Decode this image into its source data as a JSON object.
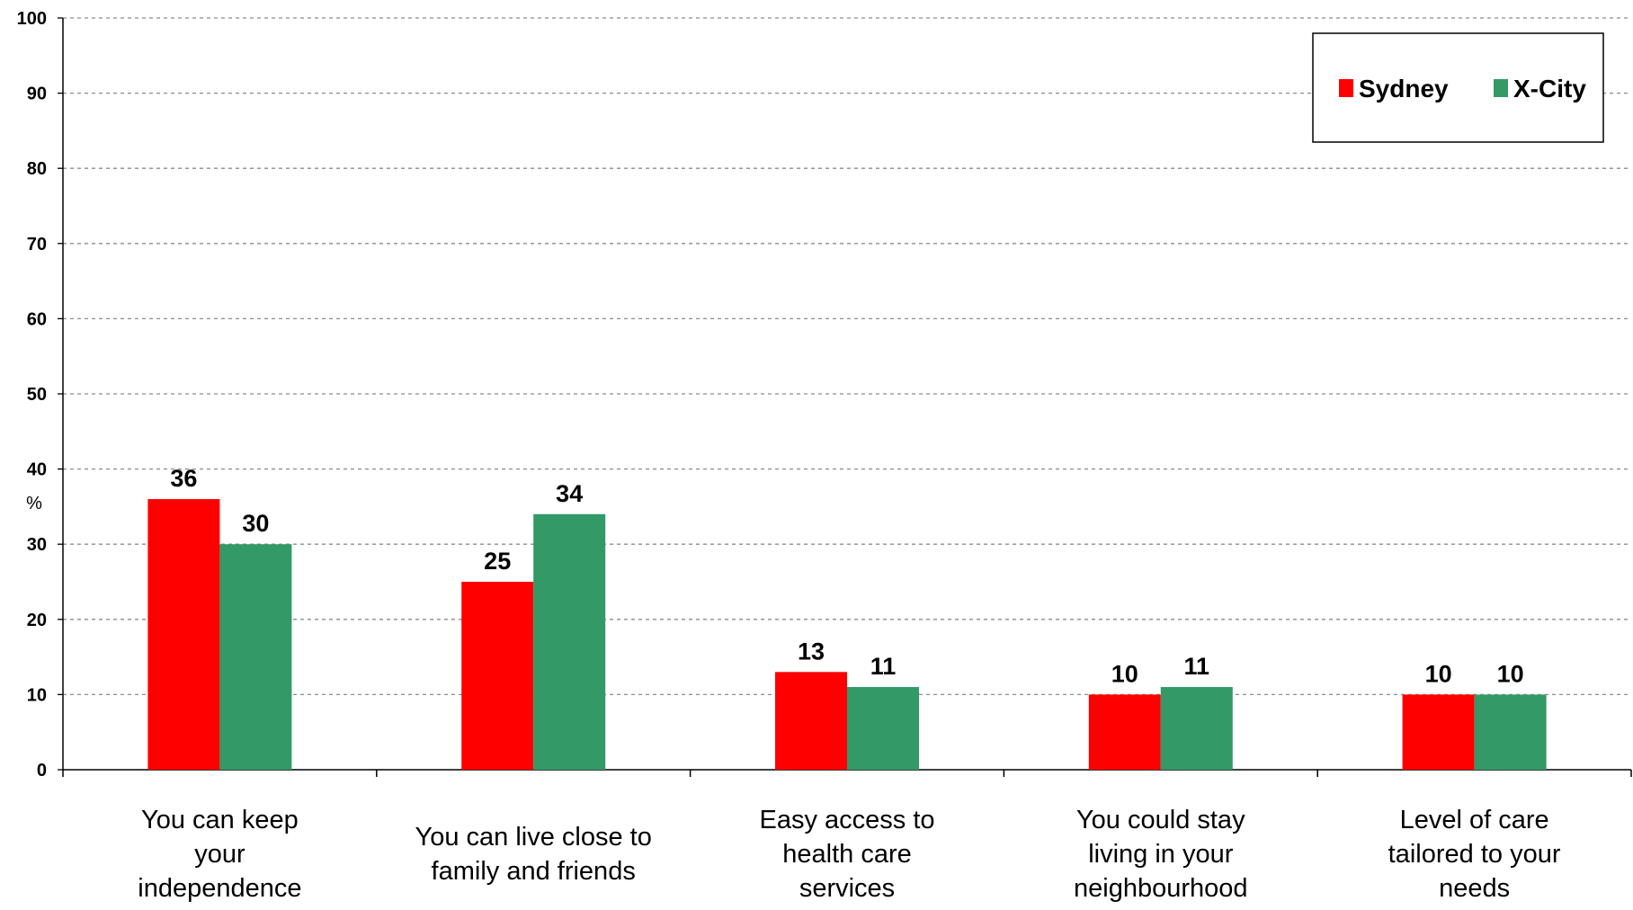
{
  "chart_data": {
    "type": "bar",
    "title": "",
    "xlabel": "",
    "ylabel": "%",
    "ylim": [
      0,
      100
    ],
    "yticks": [
      0,
      10,
      20,
      30,
      40,
      50,
      60,
      70,
      80,
      90,
      100
    ],
    "grid": true,
    "legend_position": "top-right",
    "categories": [
      [
        "You can keep",
        "your",
        "independence"
      ],
      [
        "You can live close to",
        "family and friends"
      ],
      [
        "Easy access to",
        "health care",
        "services"
      ],
      [
        "You could stay",
        "living in your",
        "neighbourhood"
      ],
      [
        "Level of care",
        "tailored to your",
        "needs"
      ]
    ],
    "series": [
      {
        "name": "Sydney",
        "color": "#ff0000",
        "values": [
          36,
          25,
          13,
          10,
          10
        ]
      },
      {
        "name": "X-City",
        "color": "#339966",
        "values": [
          30,
          34,
          11,
          11,
          10
        ]
      }
    ]
  }
}
